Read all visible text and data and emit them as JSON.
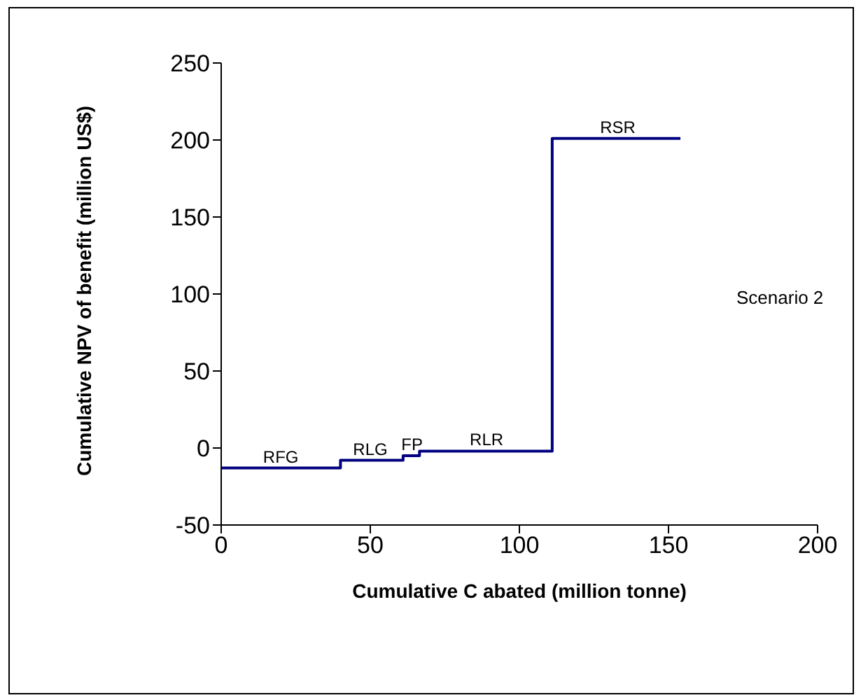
{
  "chart_data": {
    "type": "step",
    "xlabel": "Cumulative C abated (million tonne)",
    "ylabel": "Cumulative NPV of benefit (million US$)",
    "x": [
      0,
      40,
      61,
      66.5,
      111,
      154
    ],
    "series": [
      {
        "color": "#000080",
        "values": [
          -13,
          -8,
          -5,
          -2,
          201,
          201
        ]
      }
    ],
    "xlim": [
      0,
      200
    ],
    "xticks": [
      0,
      50,
      100,
      150,
      200
    ],
    "ylim": [
      -50,
      250
    ],
    "yticks": [
      -50,
      0,
      50,
      100,
      150,
      200,
      250
    ],
    "grid": false,
    "legend": false,
    "marker": "none",
    "line_style": "solid",
    "annotations": [
      {
        "text": "RFG",
        "x": 20,
        "y": -13
      },
      {
        "text": "RLG",
        "x": 50,
        "y": -8
      },
      {
        "text": "FP",
        "x": 64,
        "y": -5
      },
      {
        "text": "RLR",
        "x": 89,
        "y": -2
      },
      {
        "text": "RSR",
        "x": 133,
        "y": 201
      },
      "Scenario 2"
    ]
  }
}
